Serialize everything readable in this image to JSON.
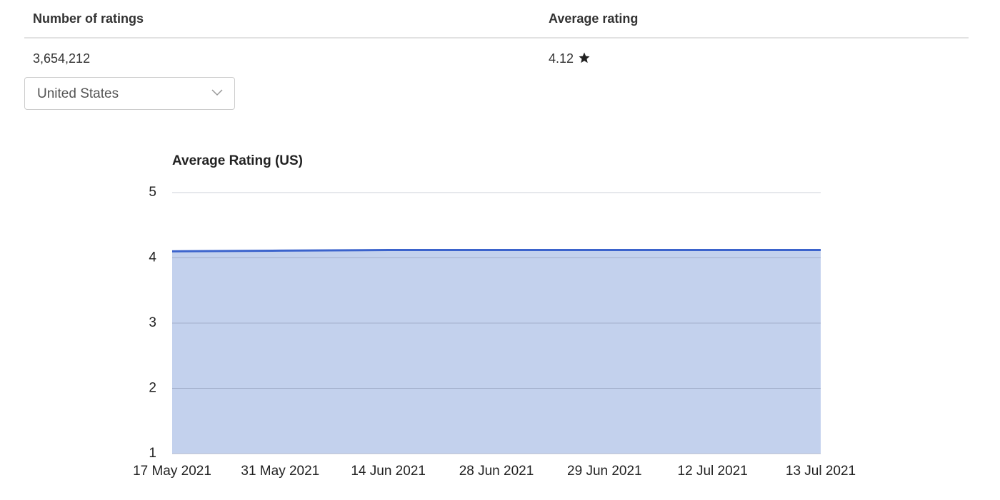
{
  "table": {
    "headers": [
      "Number of ratings",
      "Average rating"
    ],
    "rows": [
      [
        "3,654,212",
        "4.12"
      ]
    ]
  },
  "dropdown": {
    "selected": "United States"
  },
  "chart_data": {
    "type": "area",
    "title": "Average Rating (US)",
    "categories": [
      "17 May 2021",
      "31 May 2021",
      "14 Jun 2021",
      "28 Jun 2021",
      "29 Jun 2021",
      "12 Jul 2021",
      "13 Jul 2021"
    ],
    "values": [
      4.1,
      4.11,
      4.12,
      4.12,
      4.12,
      4.12,
      4.12
    ],
    "color": "#3b63cc",
    "fill_color": "#c3d1ed",
    "ylim": [
      1,
      5
    ],
    "yticks": [
      1,
      2,
      3,
      4,
      5
    ],
    "grid": true
  }
}
